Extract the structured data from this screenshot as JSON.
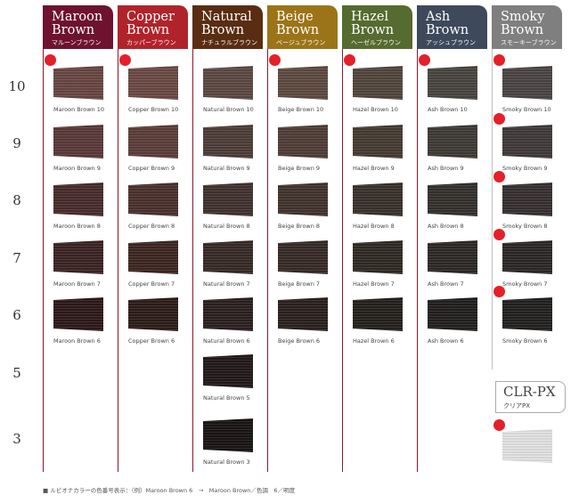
{
  "columns": [
    {
      "id": "maroon",
      "line1": "Maroon",
      "line2": "Brown",
      "jp": "マルーンブラウン",
      "color": "#6e1230",
      "labels": [
        "Maroon Brown 10",
        "Maroon Brown 9",
        "Maroon Brown 8",
        "Maroon Brown 7",
        "Maroon Brown 6"
      ],
      "swatches": [
        "#6a4744",
        "#5a3a39",
        "#4a2c2c",
        "#3d2424",
        "#2e1a1a"
      ]
    },
    {
      "id": "copper",
      "line1": "Copper",
      "line2": "Brown",
      "jp": "カッパーブラウン",
      "color": "#b1232a",
      "labels": [
        "Copper Brown 10",
        "Copper Brown 9",
        "Copper Brown 8",
        "Copper Brown 7",
        "Copper Brown 6"
      ],
      "swatches": [
        "#6c4b44",
        "#5c3f3a",
        "#4c322e",
        "#3e2723",
        "#2f1d1a"
      ]
    },
    {
      "id": "natural",
      "line1": "Natural",
      "line2": "Brown",
      "jp": "ナチュラルブラウン",
      "color": "#5a2d12",
      "labels": [
        "Natural Brown 10",
        "Natural Brown 9",
        "Natural Brown 8",
        "Natural Brown 7",
        "Natural Brown 6",
        "Natural Brown 5",
        "Natural Brown 3"
      ],
      "swatches": [
        "#5e4a44",
        "#4f3e39",
        "#42332f",
        "#382a27",
        "#2c2120",
        "#231a1a",
        "#1a1414"
      ]
    },
    {
      "id": "beige",
      "line1": "Beige",
      "line2": "Brown",
      "jp": "ベージュブラウン",
      "color": "#9b7418",
      "labels": [
        "Beige Brown 10",
        "Beige Brown 9",
        "Beige Brown 8",
        "Beige Brown 7",
        "Beige Brown 6"
      ],
      "swatches": [
        "#5f4c42",
        "#503f37",
        "#43342e",
        "#382b27",
        "#2b221f"
      ]
    },
    {
      "id": "hazel",
      "line1": "Hazel",
      "line2": "Brown",
      "jp": "ヘーゼルブラウン",
      "color": "#556b2f",
      "labels": [
        "Hazel Brown 10",
        "Hazel Brown 9",
        "Hazel Brown 8",
        "Hazel Brown 7",
        "Hazel Brown 6"
      ],
      "swatches": [
        "#52473d",
        "#463c33",
        "#3b322b",
        "#312a24",
        "#25201c"
      ]
    },
    {
      "id": "ash",
      "line1": "Ash",
      "line2": "Brown",
      "jp": "アッシュブラウン",
      "color": "#3e4a5c",
      "labels": [
        "Ash Brown 10",
        "Ash Brown 9",
        "Ash Brown 8",
        "Ash Brown 7",
        "Ash Brown 6"
      ],
      "swatches": [
        "#4a4540",
        "#3f3b36",
        "#35312d",
        "#2c2926",
        "#22201e"
      ]
    },
    {
      "id": "smoky",
      "line1": "Smoky",
      "line2": "Brown",
      "jp": "スモーキーブラウン",
      "color": "#7f7f7f",
      "labels": [
        "Smoky Brown 10",
        "Smoky Brown 9",
        "Smoky Brown 8",
        "Smoky Brown 7",
        "Smoky Brown 6"
      ],
      "swatches": [
        "#4d4545",
        "#423a3a",
        "#383131",
        "#2e2828",
        "#242020"
      ]
    }
  ],
  "levels": [
    "10",
    "9",
    "8",
    "7",
    "6",
    "5",
    "3"
  ],
  "clr": {
    "title": "CLR-PX",
    "sub": "クリアPX"
  },
  "footnote": "■ ルビオナカラーの色番号表示：（例）Maroon Brown 6　→　Maroon Brown／色調　6／明度",
  "colors": {
    "dot": "#e4202a",
    "line": "#8a1a2c",
    "clear_swatch": "#e6e6e6"
  }
}
